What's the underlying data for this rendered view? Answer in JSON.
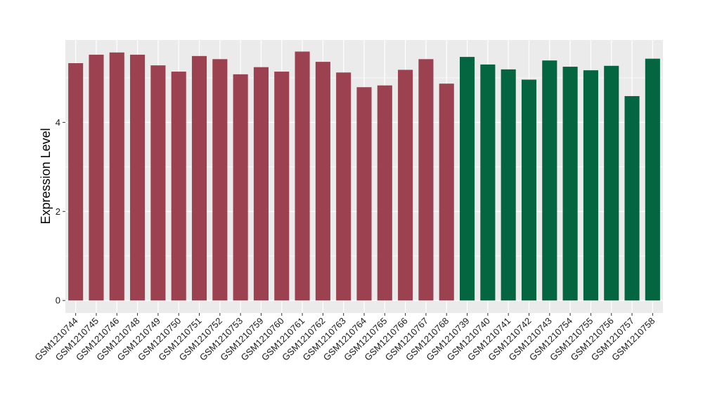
{
  "chart_data": {
    "type": "bar",
    "ylabel": "Expression Level",
    "xlabel": "",
    "ylim": [
      -0.28,
      5.85
    ],
    "yticks": [
      0,
      2,
      4
    ],
    "grid": true,
    "background": "#ebebeb",
    "colors": {
      "group1": "#9b4150",
      "group2": "#036641",
      "grid": "#ffffff"
    },
    "categories": [
      "GSM1210744",
      "GSM1210745",
      "GSM1210746",
      "GSM1210748",
      "GSM1210749",
      "GSM1210750",
      "GSM1210751",
      "GSM1210752",
      "GSM1210753",
      "GSM1210759",
      "GSM1210760",
      "GSM1210761",
      "GSM1210762",
      "GSM1210763",
      "GSM1210764",
      "GSM1210765",
      "GSM1210766",
      "GSM1210767",
      "GSM1210768",
      "GSM1210739",
      "GSM1210740",
      "GSM1210741",
      "GSM1210742",
      "GSM1210743",
      "GSM1210754",
      "GSM1210755",
      "GSM1210756",
      "GSM1210757",
      "GSM1210758"
    ],
    "values": [
      5.33,
      5.52,
      5.57,
      5.52,
      5.28,
      5.14,
      5.49,
      5.42,
      5.08,
      5.24,
      5.14,
      5.59,
      5.36,
      5.12,
      4.79,
      4.83,
      5.18,
      5.42,
      4.87,
      5.47,
      5.3,
      5.19,
      4.96,
      5.39,
      5.25,
      5.17,
      5.27,
      4.59,
      5.43
    ],
    "groups": [
      "group1",
      "group1",
      "group1",
      "group1",
      "group1",
      "group1",
      "group1",
      "group1",
      "group1",
      "group1",
      "group1",
      "group1",
      "group1",
      "group1",
      "group1",
      "group1",
      "group1",
      "group1",
      "group1",
      "group2",
      "group2",
      "group2",
      "group2",
      "group2",
      "group2",
      "group2",
      "group2",
      "group2",
      "group2"
    ]
  }
}
